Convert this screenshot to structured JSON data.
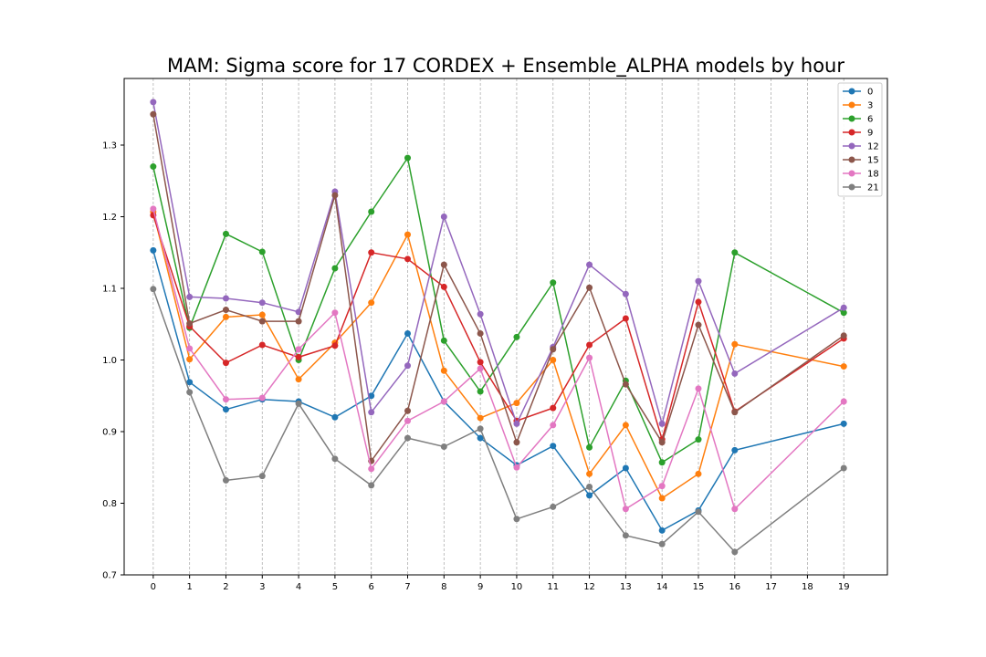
{
  "chart_data": {
    "type": "line",
    "title": "MAM: Sigma score for 17 CORDEX + Ensemble_ALPHA models by hour",
    "xlabel": "",
    "ylabel": "",
    "x_ticks": [
      "0",
      "1",
      "2",
      "3",
      "4",
      "5",
      "6",
      "7",
      "8",
      "9",
      "10",
      "11",
      "12",
      "13",
      "14",
      "15",
      "16",
      "17",
      "18",
      "19"
    ],
    "y_ticks": [
      "0.7",
      "0.8",
      "0.9",
      "1.0",
      "1.1",
      "1.2",
      "1.3"
    ],
    "xlim": [
      -0.8,
      20.2
    ],
    "ylim": [
      0.7,
      1.393
    ],
    "grid": "vertical dashed",
    "legend_position": "top-right",
    "x": [
      0,
      1,
      2,
      3,
      4,
      5,
      6,
      7,
      8,
      9,
      10,
      11,
      12,
      13,
      14,
      15,
      16,
      19
    ],
    "series": [
      {
        "name": "0",
        "color": "#1f77b4",
        "values": [
          1.153,
          0.969,
          0.931,
          0.945,
          0.942,
          0.92,
          0.95,
          1.037,
          0.942,
          0.891,
          0.853,
          0.88,
          0.811,
          0.849,
          0.762,
          0.79,
          0.874,
          0.911
        ]
      },
      {
        "name": "3",
        "color": "#ff7f0e",
        "values": [
          1.207,
          1.001,
          1.06,
          1.063,
          0.973,
          1.024,
          1.08,
          1.175,
          0.985,
          0.919,
          0.94,
          1.0,
          0.841,
          0.909,
          0.807,
          0.841,
          1.022,
          0.991
        ]
      },
      {
        "name": "6",
        "color": "#2ca02c",
        "values": [
          1.27,
          1.045,
          1.176,
          1.151,
          1.0,
          1.128,
          1.207,
          1.282,
          1.027,
          0.956,
          1.032,
          1.108,
          0.878,
          0.971,
          0.857,
          0.889,
          1.15,
          1.066
        ]
      },
      {
        "name": "9",
        "color": "#d62728",
        "values": [
          1.202,
          1.047,
          0.996,
          1.021,
          1.004,
          1.02,
          1.15,
          1.141,
          1.102,
          0.997,
          0.915,
          0.933,
          1.021,
          1.058,
          0.889,
          1.081,
          0.928,
          1.03
        ]
      },
      {
        "name": "12",
        "color": "#9467bd",
        "values": [
          1.36,
          1.088,
          1.086,
          1.08,
          1.067,
          1.235,
          0.927,
          0.992,
          1.2,
          1.064,
          0.911,
          1.018,
          1.133,
          1.092,
          0.911,
          1.11,
          0.981,
          1.073
        ]
      },
      {
        "name": "15",
        "color": "#8c564b",
        "values": [
          1.343,
          1.051,
          1.07,
          1.054,
          1.054,
          1.23,
          0.859,
          0.929,
          1.133,
          1.037,
          0.885,
          1.015,
          1.101,
          0.966,
          0.885,
          1.049,
          0.927,
          1.034
        ]
      },
      {
        "name": "18",
        "color": "#e377c2",
        "values": [
          1.211,
          1.016,
          0.945,
          0.947,
          1.015,
          1.066,
          0.848,
          0.915,
          0.942,
          0.988,
          0.85,
          0.909,
          1.003,
          0.792,
          0.824,
          0.96,
          0.792,
          0.942
        ]
      },
      {
        "name": "21",
        "color": "#7f7f7f",
        "values": [
          1.099,
          0.955,
          0.832,
          0.838,
          0.939,
          0.862,
          0.825,
          0.891,
          0.879,
          0.904,
          0.778,
          0.795,
          0.823,
          0.755,
          0.743,
          0.788,
          0.732,
          0.849
        ]
      }
    ]
  }
}
